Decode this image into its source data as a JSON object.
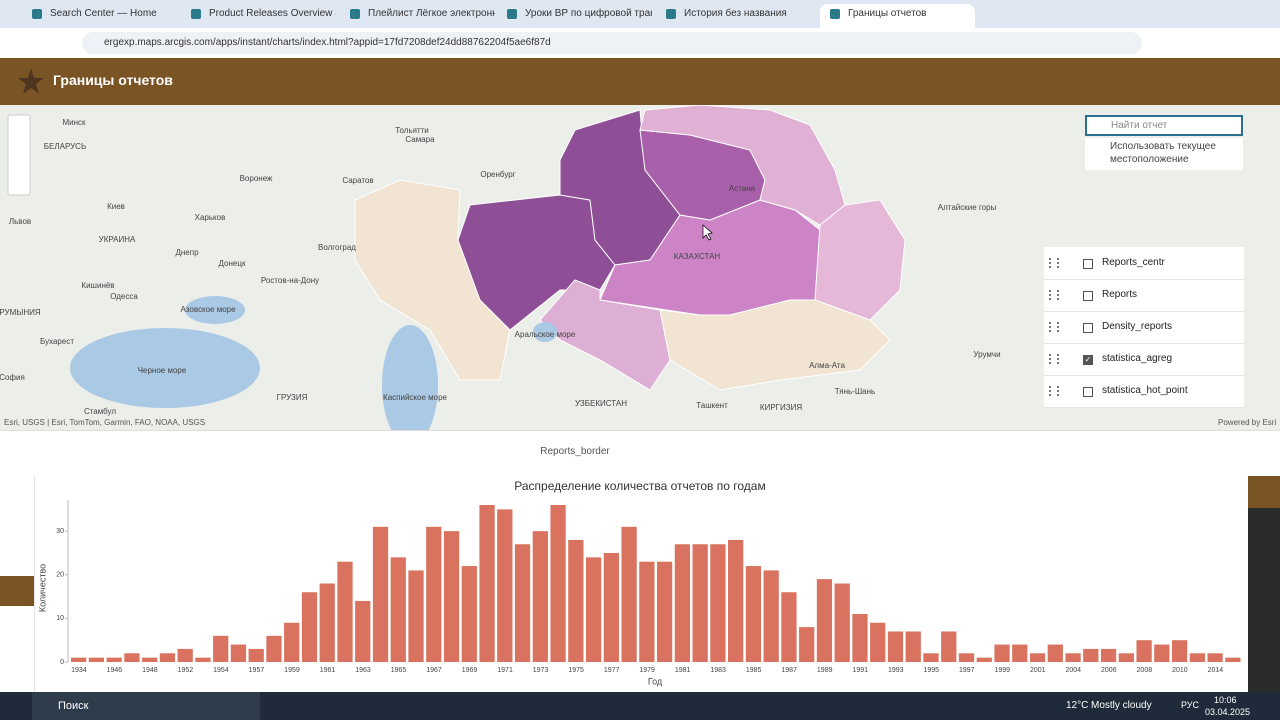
{
  "browser": {
    "tabs": [
      "Search Center — Home",
      "Product Releases Overview Slid",
      "Плейлист Лёгкое электронное",
      "Уроки ВР по цифровой транс",
      "История без названия",
      "Границы отчетов"
    ],
    "active_tab": 5,
    "url": "ergexp.maps.arcgis.com/apps/instant/charts/index.html?appid=17fd7208def24dd88762204f5ae6f87d"
  },
  "app": {
    "title": "Границы отчетов"
  },
  "map": {
    "labels": [
      "Минск",
      "БЕЛАРУСЬ",
      "Воронеж",
      "Саратов",
      "Тольятти",
      "Самара",
      "Оренбург",
      "Астана",
      "КАЗАХСТАН",
      "Киев",
      "УКРАИНА",
      "Харьков",
      "Днепр",
      "Донецк",
      "Волгоград",
      "Ростов-на-Дону",
      "Кишинёв",
      "Одесса",
      "РУМЫНИЯ",
      "Бухарест",
      "София",
      "Стамбул",
      "Черное море",
      "ГРУЗИЯ",
      "Каспийское море",
      "УЗБЕКИСТАН",
      "Ташкент",
      "КИРГИЗИЯ",
      "Урумчи",
      "Алтайские горы",
      "Аральское море",
      "Алма-Ата",
      "Тянь-Шань",
      "Львов",
      "Азовское море"
    ],
    "search_placeholder": "Найти отчет",
    "location_option": "Использовать текущее местоположение",
    "layers": [
      {
        "name": "Reports_centr",
        "checked": false
      },
      {
        "name": "Reports",
        "checked": false
      },
      {
        "name": "Density_reports",
        "checked": false
      },
      {
        "name": "statistica_agreg",
        "checked": true
      },
      {
        "name": "statistica_hot_point",
        "checked": false
      }
    ],
    "attribution": "Esri, USGS | Esri, TomTom, Garmin, FAO, NOAA, USGS",
    "powered": "Powered by Esri"
  },
  "panel": {
    "title": "Reports_border"
  },
  "chart_data": {
    "type": "bar",
    "title": "Распределение количества отчетов по годам",
    "x_label": "Год",
    "y_label": "Количество",
    "color": "#d9735f",
    "categories": [
      "1934",
      null,
      "1946",
      null,
      "1948",
      null,
      "1952",
      null,
      "1954",
      null,
      "1957",
      null,
      "1959",
      null,
      "1961",
      null,
      "1963",
      null,
      "1965",
      null,
      "1967",
      null,
      "1969",
      null,
      "1971",
      null,
      "1973",
      null,
      "1975",
      null,
      "1977",
      null,
      "1979",
      null,
      "1981",
      null,
      "1983",
      null,
      "1985",
      null,
      "1987",
      null,
      "1989",
      null,
      "1991",
      null,
      "1993",
      null,
      "1995",
      null,
      "1997",
      null,
      "1999",
      null,
      "2001",
      null,
      "2004",
      null,
      "2006",
      null,
      "2008",
      null,
      "2010",
      null,
      "2014",
      null
    ],
    "values": [
      1,
      1,
      1,
      2,
      1,
      2,
      3,
      1,
      6,
      4,
      3,
      6,
      9,
      16,
      18,
      23,
      14,
      31,
      24,
      21,
      31,
      30,
      22,
      36,
      35,
      27,
      30,
      36,
      28,
      24,
      25,
      31,
      23,
      23,
      27,
      27,
      27,
      28,
      22,
      21,
      16,
      8,
      19,
      18,
      11,
      9,
      7,
      7,
      2,
      7,
      2,
      1,
      4,
      4,
      2,
      4,
      2,
      3,
      3,
      2,
      5,
      4,
      5,
      2,
      2,
      1
    ],
    "ylim": [
      0,
      36
    ],
    "yticks": [
      0,
      10,
      20,
      30
    ]
  },
  "taskbar": {
    "search": "Поиск",
    "temperature": "12°C",
    "weather": "Mostly cloudy",
    "language": "РУС",
    "time": "10:06",
    "date": "03.04.2025"
  }
}
